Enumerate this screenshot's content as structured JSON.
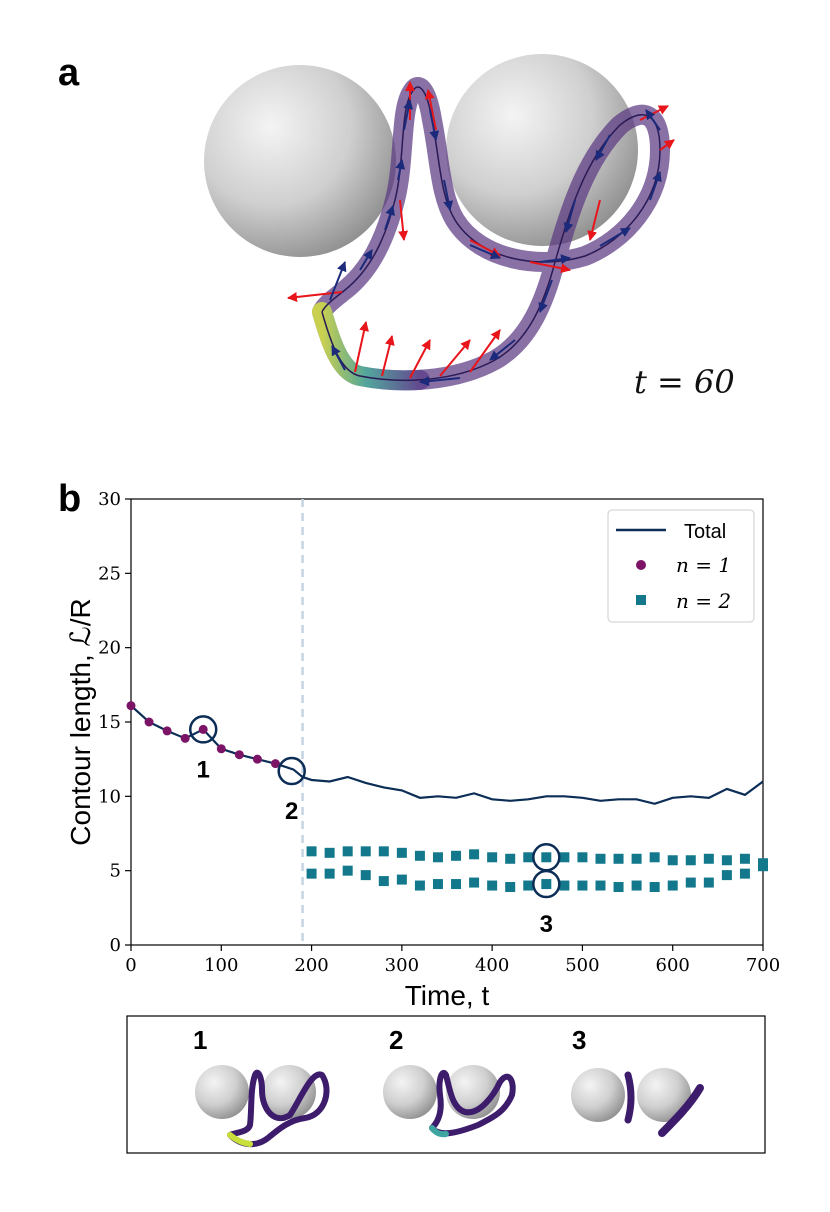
{
  "panel_a": {
    "label": "a",
    "time_label": "t = 60"
  },
  "panel_b": {
    "label": "b"
  },
  "chart_data": {
    "type": "scatter",
    "title": "",
    "xlabel": "Time, t",
    "ylabel": "Contour length, ℒ/R",
    "xlim": [
      0,
      700
    ],
    "ylim": [
      0,
      30
    ],
    "xticks": [
      "0",
      "100",
      "200",
      "300",
      "400",
      "500",
      "600",
      "700"
    ],
    "yticks": [
      "0",
      "5",
      "10",
      "15",
      "20",
      "25",
      "30"
    ],
    "grid": false,
    "legend_position": "top-right",
    "transition_t": 190,
    "series": [
      {
        "name": "Total",
        "kind": "line",
        "color": "#0b2d56",
        "x": [
          0,
          20,
          40,
          60,
          80,
          100,
          120,
          140,
          160,
          170,
          180,
          190,
          200,
          220,
          240,
          260,
          280,
          300,
          320,
          340,
          360,
          380,
          400,
          420,
          440,
          460,
          480,
          500,
          520,
          540,
          560,
          580,
          600,
          620,
          640,
          660,
          680,
          700
        ],
        "y": [
          16.1,
          15.0,
          14.4,
          13.9,
          14.5,
          13.2,
          12.8,
          12.5,
          12.2,
          12.0,
          11.8,
          11.3,
          11.1,
          11.0,
          11.3,
          10.9,
          10.6,
          10.4,
          9.9,
          10.0,
          9.9,
          10.2,
          9.8,
          9.7,
          9.8,
          10.0,
          10.0,
          9.9,
          9.7,
          9.8,
          9.8,
          9.5,
          9.9,
          10.0,
          9.9,
          10.5,
          10.1,
          11.0
        ]
      },
      {
        "name": "n = 1",
        "kind": "scatter",
        "marker": "circle",
        "color": "#7b1466",
        "x": [
          0,
          20,
          40,
          60,
          80,
          100,
          120,
          140,
          160
        ],
        "y": [
          16.1,
          15.0,
          14.4,
          13.9,
          14.5,
          13.2,
          12.8,
          12.5,
          12.2
        ]
      },
      {
        "name": "n = 2",
        "kind": "scatter",
        "marker": "square",
        "color": "#13788c",
        "x": [
          200,
          220,
          240,
          260,
          280,
          300,
          320,
          340,
          360,
          380,
          400,
          420,
          440,
          460,
          480,
          500,
          520,
          540,
          560,
          580,
          600,
          620,
          640,
          660,
          680,
          700,
          200,
          220,
          240,
          260,
          280,
          300,
          320,
          340,
          360,
          380,
          400,
          420,
          440,
          460,
          480,
          500,
          520,
          540,
          560,
          580,
          600,
          620,
          640,
          660,
          680,
          700
        ],
        "y": [
          6.3,
          6.2,
          6.3,
          6.3,
          6.3,
          6.2,
          6.0,
          5.9,
          6.0,
          6.1,
          5.9,
          5.8,
          5.9,
          5.9,
          5.9,
          5.9,
          5.8,
          5.8,
          5.8,
          5.9,
          5.7,
          5.7,
          5.8,
          5.7,
          5.8,
          5.5,
          4.8,
          4.8,
          5.0,
          4.7,
          4.3,
          4.4,
          4.0,
          4.1,
          4.1,
          4.2,
          4.0,
          3.9,
          4.0,
          4.1,
          4.0,
          4.0,
          4.0,
          3.9,
          4.0,
          3.9,
          4.0,
          4.2,
          4.2,
          4.7,
          4.8,
          5.3
        ]
      }
    ],
    "annotations": [
      {
        "label": "1",
        "x": 80,
        "y": 14.5
      },
      {
        "label": "2",
        "x": 178,
        "y": 11.7
      },
      {
        "label": "3",
        "x": 460,
        "y": 5.9,
        "y2": 4.1
      }
    ]
  },
  "snapshots": {
    "labels": [
      "1",
      "2",
      "3"
    ]
  }
}
